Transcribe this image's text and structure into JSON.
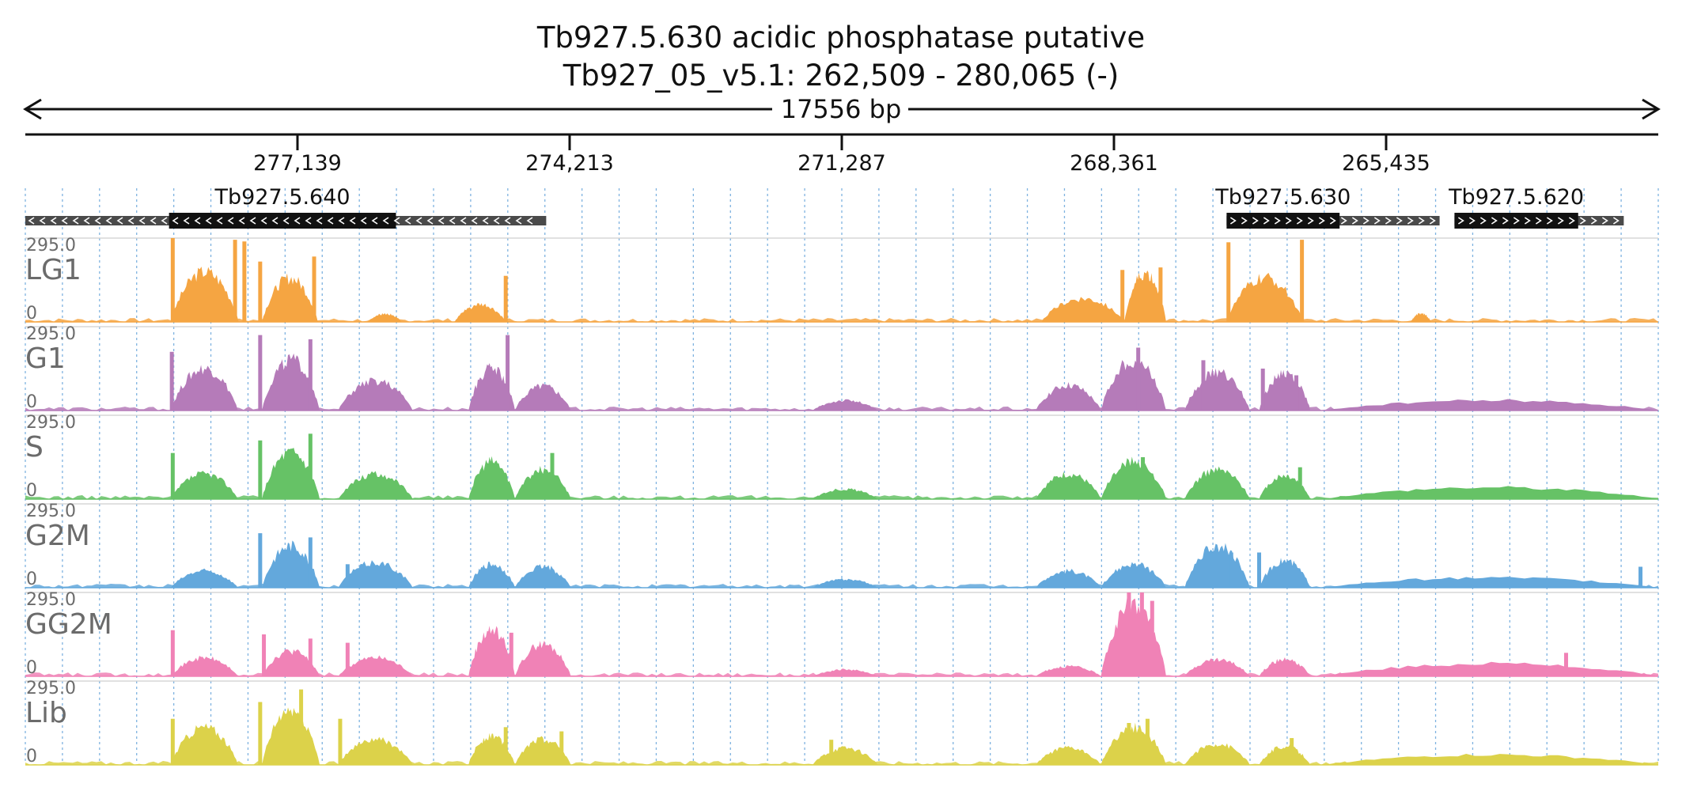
{
  "header": {
    "title": "Tb927.5.630  acidic phosphatase  putative",
    "region": "Tb927_05_v5.1: 262,509 - 280,065 (-)",
    "length_label": "17556 bp"
  },
  "axis": {
    "ticks": [
      {
        "label": "277,139",
        "value": 277139
      },
      {
        "label": "274,213",
        "value": 274213
      },
      {
        "label": "271,287",
        "value": 271287
      },
      {
        "label": "268,361",
        "value": 268361
      },
      {
        "label": "265,435",
        "value": 265435
      }
    ],
    "start": 280065,
    "end": 262509,
    "strand": "-"
  },
  "genes": [
    {
      "name": "Tb927.5.640",
      "strand": "-",
      "utr": [
        280065,
        274465
      ],
      "cds": [
        278520,
        276080
      ]
    },
    {
      "name": "Tb927.5.630",
      "strand": "+",
      "utr": [
        267150,
        264860
      ],
      "cds": [
        267150,
        265935
      ]
    },
    {
      "name": "Tb927.5.620",
      "strand": "+",
      "utr": [
        264700,
        262880
      ],
      "cds": [
        264700,
        263370
      ]
    }
  ],
  "colors": {
    "LG1": "#f5a542",
    "G1": "#b57bb9",
    "S": "#66c266",
    "G2M": "#63a8dc",
    "GG2M": "#f082b6",
    "Lib": "#dcd24a",
    "gene_cds": "#111111",
    "gene_utr": "#4a4a4a",
    "grid": "#7fb3e0"
  },
  "chart_data": {
    "type": "area",
    "x_unit": "bp",
    "x_range": [
      280065,
      262509
    ],
    "track_ylim": [
      0,
      295.0
    ],
    "tracks": [
      {
        "name": "LG1",
        "ymax_label": "295.0",
        "ymin_label": "0",
        "peaks": [
          {
            "x": [
              278500,
              277770
            ],
            "h": 0.6
          },
          {
            "x": [
              277520,
              276920
            ],
            "h": 0.52
          },
          {
            "x": [
              275450,
              274900
            ],
            "h": 0.2
          },
          {
            "x": [
              269140,
              268250
            ],
            "h": 0.28
          },
          {
            "x": [
              268250,
              267800
            ],
            "h": 0.58
          },
          {
            "x": [
              267150,
              266330
            ],
            "h": 0.52
          },
          {
            "x": [
              276380,
              276020
            ],
            "h": 0.1
          },
          {
            "x": [
              265170,
              264950
            ],
            "h": 0.1
          }
        ],
        "spikes": [
          {
            "x": 278480,
            "h": 1.0
          },
          {
            "x": 277810,
            "h": 0.98
          },
          {
            "x": 277710,
            "h": 0.96
          },
          {
            "x": 277540,
            "h": 0.72
          },
          {
            "x": 276960,
            "h": 0.78
          },
          {
            "x": 274900,
            "h": 0.55
          },
          {
            "x": 268270,
            "h": 0.62
          },
          {
            "x": 267860,
            "h": 0.65
          },
          {
            "x": 267130,
            "h": 0.95
          },
          {
            "x": 266340,
            "h": 0.98
          }
        ]
      },
      {
        "name": "G1",
        "ymax_label": "295.0",
        "ymin_label": "0",
        "peaks": [
          {
            "x": [
              278500,
              277780
            ],
            "h": 0.5
          },
          {
            "x": [
              277520,
              276900
            ],
            "h": 0.6
          },
          {
            "x": [
              276700,
              275900
            ],
            "h": 0.35
          },
          {
            "x": [
              275300,
              274800
            ],
            "h": 0.5
          },
          {
            "x": [
              274800,
              274200
            ],
            "h": 0.3
          },
          {
            "x": [
              271600,
              270900
            ],
            "h": 0.12
          },
          {
            "x": [
              269200,
              268500
            ],
            "h": 0.3
          },
          {
            "x": [
              268500,
              267800
            ],
            "h": 0.6
          },
          {
            "x": [
              267600,
              266900
            ],
            "h": 0.45
          },
          {
            "x": [
              266800,
              266250
            ],
            "h": 0.45
          },
          {
            "x": [
              266100,
              262509
            ],
            "h": 0.12
          }
        ],
        "spikes": [
          {
            "x": 278490,
            "h": 0.7
          },
          {
            "x": 277540,
            "h": 0.9
          },
          {
            "x": 277000,
            "h": 0.85
          },
          {
            "x": 274880,
            "h": 0.9
          },
          {
            "x": 268100,
            "h": 0.75
          },
          {
            "x": 267400,
            "h": 0.6
          },
          {
            "x": 266760,
            "h": 0.5
          },
          {
            "x": 266400,
            "h": 0.42
          }
        ]
      },
      {
        "name": "S",
        "ymax_label": "295.0",
        "ymin_label": "0",
        "peaks": [
          {
            "x": [
              278500,
              277780
            ],
            "h": 0.3
          },
          {
            "x": [
              277520,
              276900
            ],
            "h": 0.55
          },
          {
            "x": [
              276700,
              275900
            ],
            "h": 0.3
          },
          {
            "x": [
              275300,
              274800
            ],
            "h": 0.45
          },
          {
            "x": [
              274800,
              274200
            ],
            "h": 0.35
          },
          {
            "x": [
              271600,
              270900
            ],
            "h": 0.12
          },
          {
            "x": [
              269200,
              268500
            ],
            "h": 0.3
          },
          {
            "x": [
              268500,
              267800
            ],
            "h": 0.45
          },
          {
            "x": [
              267600,
              266900
            ],
            "h": 0.35
          },
          {
            "x": [
              266800,
              266250
            ],
            "h": 0.28
          },
          {
            "x": [
              266100,
              262509
            ],
            "h": 0.14
          }
        ],
        "spikes": [
          {
            "x": 278480,
            "h": 0.55
          },
          {
            "x": 277540,
            "h": 0.7
          },
          {
            "x": 277000,
            "h": 0.78
          },
          {
            "x": 274400,
            "h": 0.55
          },
          {
            "x": 268050,
            "h": 0.5
          },
          {
            "x": 266360,
            "h": 0.38
          }
        ]
      },
      {
        "name": "G2M",
        "ymax_label": "295.0",
        "ymin_label": "0",
        "peaks": [
          {
            "x": [
              278500,
              277780
            ],
            "h": 0.2
          },
          {
            "x": [
              277520,
              276900
            ],
            "h": 0.5
          },
          {
            "x": [
              276700,
              275900
            ],
            "h": 0.3
          },
          {
            "x": [
              275300,
              274800
            ],
            "h": 0.28
          },
          {
            "x": [
              274800,
              274200
            ],
            "h": 0.25
          },
          {
            "x": [
              271600,
              270900
            ],
            "h": 0.1
          },
          {
            "x": [
              269200,
              268500
            ],
            "h": 0.2
          },
          {
            "x": [
              268500,
              267800
            ],
            "h": 0.28
          },
          {
            "x": [
              267600,
              266900
            ],
            "h": 0.5
          },
          {
            "x": [
              266800,
              266250
            ],
            "h": 0.32
          },
          {
            "x": [
              266100,
              262509
            ],
            "h": 0.12
          }
        ],
        "spikes": [
          {
            "x": 277540,
            "h": 0.65
          },
          {
            "x": 277000,
            "h": 0.6
          },
          {
            "x": 276600,
            "h": 0.28
          },
          {
            "x": 267100,
            "h": 0.42
          },
          {
            "x": 266800,
            "h": 0.42
          },
          {
            "x": 262700,
            "h": 0.25
          }
        ]
      },
      {
        "name": "GG2M",
        "ymax_label": "295.0",
        "ymin_label": "0",
        "peaks": [
          {
            "x": [
              278500,
              277780
            ],
            "h": 0.22
          },
          {
            "x": [
              277520,
              276900
            ],
            "h": 0.3
          },
          {
            "x": [
              276700,
              275900
            ],
            "h": 0.22
          },
          {
            "x": [
              275300,
              274800
            ],
            "h": 0.55
          },
          {
            "x": [
              274800,
              274200
            ],
            "h": 0.38
          },
          {
            "x": [
              271600,
              270900
            ],
            "h": 0.08
          },
          {
            "x": [
              269200,
              268500
            ],
            "h": 0.12
          },
          {
            "x": [
              268500,
              267800
            ],
            "h": 0.85
          },
          {
            "x": [
              267600,
              266900
            ],
            "h": 0.2
          },
          {
            "x": [
              266800,
              266250
            ],
            "h": 0.2
          },
          {
            "x": [
              266100,
              262509
            ],
            "h": 0.15
          }
        ],
        "spikes": [
          {
            "x": 278480,
            "h": 0.55
          },
          {
            "x": 277500,
            "h": 0.5
          },
          {
            "x": 277000,
            "h": 0.45
          },
          {
            "x": 276600,
            "h": 0.4
          },
          {
            "x": 274840,
            "h": 0.52
          },
          {
            "x": 268200,
            "h": 1.0
          },
          {
            "x": 268060,
            "h": 1.0
          },
          {
            "x": 267950,
            "h": 0.9
          },
          {
            "x": 263500,
            "h": 0.28
          }
        ]
      },
      {
        "name": "Lib",
        "ymax_label": "295.0",
        "ymin_label": "0",
        "peaks": [
          {
            "x": [
              278500,
              277780
            ],
            "h": 0.45
          },
          {
            "x": [
              277520,
              276900
            ],
            "h": 0.65
          },
          {
            "x": [
              276700,
              275900
            ],
            "h": 0.3
          },
          {
            "x": [
              275300,
              274800
            ],
            "h": 0.35
          },
          {
            "x": [
              274800,
              274200
            ],
            "h": 0.3
          },
          {
            "x": [
              271600,
              270900
            ],
            "h": 0.2
          },
          {
            "x": [
              269200,
              268500
            ],
            "h": 0.2
          },
          {
            "x": [
              268500,
              267800
            ],
            "h": 0.45
          },
          {
            "x": [
              267600,
              266900
            ],
            "h": 0.25
          },
          {
            "x": [
              266800,
              266250
            ],
            "h": 0.22
          },
          {
            "x": [
              266100,
              262509
            ],
            "h": 0.12
          }
        ],
        "spikes": [
          {
            "x": 278480,
            "h": 0.55
          },
          {
            "x": 277540,
            "h": 0.75
          },
          {
            "x": 277100,
            "h": 0.9
          },
          {
            "x": 276680,
            "h": 0.55
          },
          {
            "x": 274900,
            "h": 0.45
          },
          {
            "x": 274300,
            "h": 0.4
          },
          {
            "x": 271400,
            "h": 0.3
          },
          {
            "x": 268200,
            "h": 0.5
          },
          {
            "x": 268000,
            "h": 0.55
          },
          {
            "x": 266450,
            "h": 0.32
          }
        ]
      }
    ]
  }
}
